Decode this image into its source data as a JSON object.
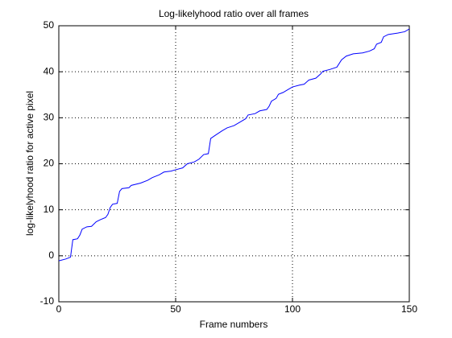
{
  "chart_data": {
    "type": "line",
    "title": "Log-likelyhood ratio over all frames",
    "xlabel": "Frame numbers",
    "ylabel": "log-likelyhood ratio for active pixel",
    "x": [
      0,
      3,
      5,
      6,
      8,
      9,
      10,
      12,
      14,
      16,
      18,
      20,
      21,
      22,
      23,
      25,
      26,
      27,
      30,
      31,
      35,
      38,
      40,
      43,
      45,
      48,
      50,
      53,
      55,
      58,
      60,
      62,
      64,
      65,
      67,
      70,
      72,
      75,
      78,
      80,
      81,
      84,
      86,
      89,
      90,
      91,
      93,
      94,
      96,
      98,
      100,
      103,
      105,
      107,
      110,
      112,
      113,
      116,
      119,
      121,
      123,
      126,
      130,
      133,
      135,
      136,
      138,
      139,
      141,
      145,
      148,
      150
    ],
    "series": [
      {
        "color": "#0000ff",
        "values": [
          -1.1,
          -0.7,
          -0.3,
          3.5,
          3.7,
          4.5,
          5.8,
          6.3,
          6.4,
          7.4,
          7.9,
          8.3,
          9,
          10.5,
          11.2,
          11.4,
          14,
          14.6,
          14.8,
          15.3,
          15.8,
          16.4,
          17,
          17.6,
          18.2,
          18.4,
          18.7,
          19.1,
          20,
          20.4,
          21,
          22,
          22.2,
          25.5,
          26.2,
          27.2,
          27.8,
          28.3,
          29.2,
          29.8,
          30.6,
          30.9,
          31.5,
          31.8,
          32.5,
          33.6,
          34.2,
          35.1,
          35.5,
          36.1,
          36.7,
          37.1,
          37.3,
          38.2,
          38.6,
          39.5,
          40.1,
          40.5,
          41,
          42.6,
          43.4,
          43.9,
          44.1,
          44.5,
          45,
          46,
          46.4,
          47.6,
          48.1,
          48.4,
          48.7,
          49.3
        ]
      }
    ],
    "xlim": [
      0,
      150
    ],
    "xticks": [
      0,
      50,
      100,
      150
    ],
    "ylim": [
      -10,
      50
    ],
    "yticks": [
      -10,
      0,
      10,
      20,
      30,
      40,
      50
    ],
    "grid": true
  }
}
